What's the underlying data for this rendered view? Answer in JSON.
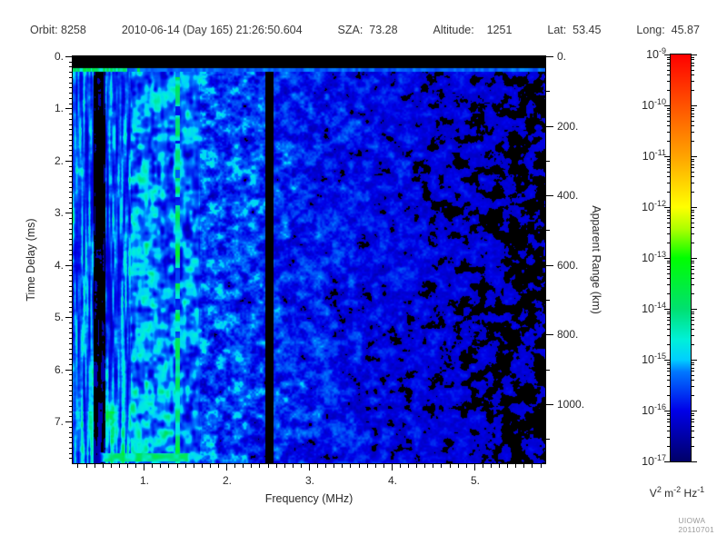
{
  "header": {
    "fields": [
      "Orbit: 8258",
      "2010-06-14 (Day 165) 21:26:50.604",
      "SZA:  73.28",
      "Altitude:    1251",
      "Lat:  53.45",
      "Long:  45.87"
    ]
  },
  "footer": {
    "credit": "UIOWA 20110701"
  },
  "chart_data": {
    "type": "heatmap",
    "subtype": "radar-sounder-ionogram-spectrogram",
    "title": "",
    "xlabel": "Frequency (MHz)",
    "ylabel_left": "Time Delay (ms)",
    "ylabel_right": "Apparent Range (km)",
    "x_axis": {
      "min": 0.14,
      "max": 5.86,
      "major_ticks": [
        1,
        2,
        3,
        4,
        5
      ],
      "tick_labels": [
        "1.",
        "2.",
        "3.",
        "4.",
        "5."
      ],
      "minor_step": 0.1
    },
    "y_axis": {
      "min": 0,
      "max": 7.8,
      "major_ticks": [
        0,
        1,
        2,
        3,
        4,
        5,
        6,
        7
      ],
      "tick_labels": [
        "0.",
        "1.",
        "2.",
        "3.",
        "4.",
        "5.",
        "6.",
        "7."
      ],
      "minor_step": 0.1
    },
    "y2_axis": {
      "min": 0,
      "max": 1170,
      "major_ticks": [
        0,
        200,
        400,
        600,
        800,
        1000
      ],
      "tick_labels": [
        "0.",
        "200.",
        "400.",
        "600.",
        "800.",
        "1000."
      ],
      "minor_step": 200,
      "minor_start": 100
    },
    "colorbar": {
      "base": "10",
      "exponent_ticks": [
        -9,
        -10,
        -11,
        -12,
        -13,
        -14,
        -15,
        -16,
        -17
      ],
      "scale_max": "1e-9",
      "scale_min": "1e-17",
      "unit_parts": [
        [
          "V",
          "2"
        ],
        [
          "m",
          "-2"
        ],
        [
          "Hz",
          "-1"
        ]
      ]
    },
    "colormap": [
      [
        0.0,
        "#000068"
      ],
      [
        0.125,
        "#0000E8"
      ],
      [
        0.22,
        "#0077FF"
      ],
      [
        0.25,
        "#00CFFF"
      ],
      [
        0.3,
        "#00F0D8"
      ],
      [
        0.375,
        "#00E070"
      ],
      [
        0.5,
        "#00FF00"
      ],
      [
        0.57,
        "#AAFF00"
      ],
      [
        0.625,
        "#FFFF00"
      ],
      [
        0.75,
        "#FFA300"
      ],
      [
        0.875,
        "#FF5200"
      ],
      [
        1.0,
        "#FF0000"
      ]
    ],
    "spectrogram": {
      "noise_seed": 1337,
      "top_black_band_ms": [
        0,
        0.22
      ],
      "surface_echo_line_ms": 0.26,
      "vertical_dark_bands_mhz": [
        [
          0.39,
          0.53
        ],
        [
          2.47,
          2.57
        ]
      ],
      "bright_line_mhz": 1.4,
      "stripe_region_mhz_max": 0.75,
      "bottom_band": {
        "ms": [
          7.58,
          7.78
        ],
        "mhz": [
          0.5,
          1.54
        ]
      },
      "base_profile": [
        [
          0.14,
          0.56
        ],
        [
          0.75,
          0.53
        ],
        [
          1.2,
          0.5
        ],
        [
          1.6,
          0.46
        ],
        [
          2.3,
          0.38
        ],
        [
          3.0,
          0.33
        ],
        [
          3.6,
          0.28
        ],
        [
          4.5,
          0.22
        ],
        [
          5.3,
          0.18
        ],
        [
          5.86,
          0.16
        ]
      ]
    }
  }
}
